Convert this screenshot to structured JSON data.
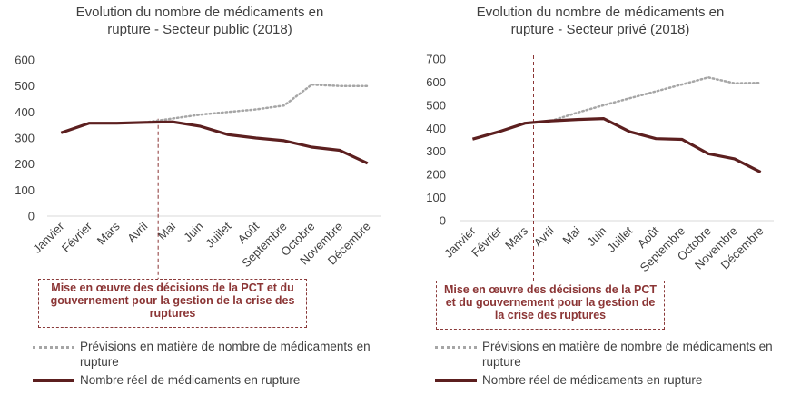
{
  "colors": {
    "forecast": "#a6a6a6",
    "actual": "#5c1f1f",
    "annotation": "#8b3535",
    "axis": "#d9d9d9"
  },
  "chart_data": [
    {
      "type": "line",
      "title_lines": [
        "Evolution du nombre de médicaments en",
        "rupture - Secteur public (2018)"
      ],
      "categories": [
        "Janvier",
        "Février",
        "Mars",
        "Avril",
        "Mai",
        "Juin",
        "Juillet",
        "Août",
        "Septembre",
        "Octobre",
        "Novembre",
        "Décembre"
      ],
      "ylim": [
        0,
        600
      ],
      "yticks": [
        "0",
        "100",
        "200",
        "300",
        "400",
        "500",
        "600"
      ],
      "series": [
        {
          "name": "Prévisions en matière de nombre de médicaments en rupture",
          "style": "dotted",
          "values": [
            null,
            null,
            null,
            360,
            375,
            390,
            400,
            410,
            425,
            505,
            500,
            500
          ]
        },
        {
          "name": "Nombre réel de médicaments en rupture",
          "style": "solid",
          "values": [
            320,
            357,
            357,
            360,
            362,
            345,
            313,
            300,
            290,
            265,
            253,
            203
          ]
        }
      ],
      "annotation": {
        "text_lines": [
          "Mise en œuvre des décisions de la PCT et du",
          "gouvernement pour la gestion de la crise des",
          "ruptures"
        ],
        "x_between": [
          "Avril",
          "Mai"
        ]
      },
      "legend_placement": "bottom"
    },
    {
      "type": "line",
      "title_lines": [
        "Evolution du nombre de médicaments en",
        "rupture - Secteur privé (2018)"
      ],
      "categories": [
        "Janvier",
        "Février",
        "Mars",
        "Avril",
        "Mai",
        "Juin",
        "Juillet",
        "Août",
        "Septembre",
        "Octobre",
        "Novembre",
        "Décembre"
      ],
      "ylim": [
        0,
        700
      ],
      "yticks": [
        "0",
        "100",
        "200",
        "300",
        "400",
        "500",
        "600",
        "700"
      ],
      "series": [
        {
          "name": "Prévisions en matière de nombre de médicaments en rupture",
          "style": "dotted",
          "values": [
            null,
            null,
            null,
            432,
            468,
            500,
            530,
            560,
            590,
            620,
            595,
            597
          ]
        },
        {
          "name": "Nombre réel de médicaments en rupture",
          "style": "solid",
          "values": [
            353,
            385,
            422,
            432,
            438,
            442,
            385,
            355,
            352,
            290,
            268,
            210
          ]
        }
      ],
      "annotation": {
        "text_lines": [
          "Mise en œuvre des décisions de la PCT",
          "et du gouvernement pour la gestion de",
          "la crise des ruptures"
        ],
        "x_between": [
          "Mars",
          "Avril"
        ]
      },
      "legend_placement": "bottom"
    }
  ],
  "legend": {
    "forecast_lines": [
      "Prévisions en matière de nombre de médicaments en",
      "rupture"
    ],
    "actual": "Nombre réel de médicaments en rupture"
  }
}
